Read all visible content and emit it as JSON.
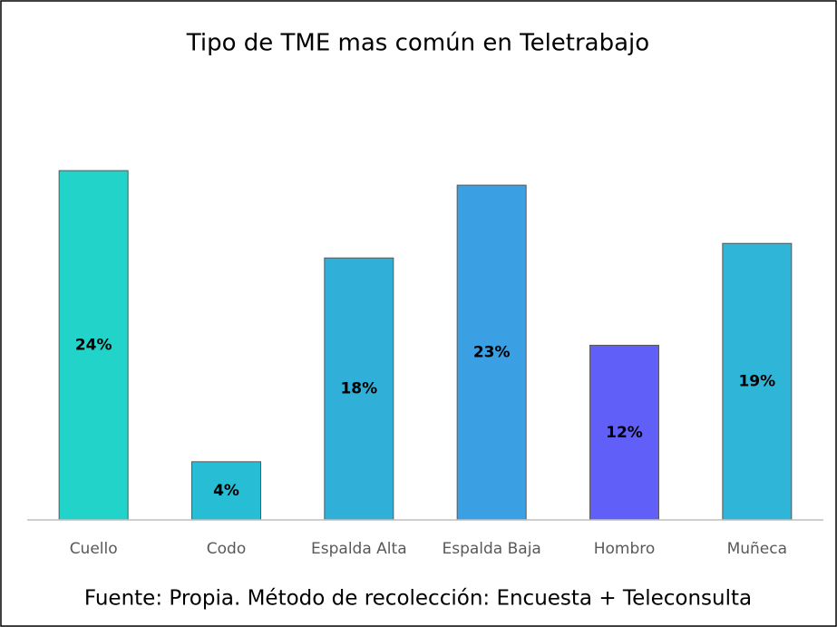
{
  "chart_data": {
    "type": "bar",
    "title": "Tipo de TME mas común en Teletrabajo",
    "categories": [
      "Cuello",
      "Codo",
      "Espalda Alta",
      "Espalda Baja",
      "Hombro",
      "Muñeca"
    ],
    "values": [
      24,
      4,
      18,
      23,
      12,
      19
    ],
    "value_labels": [
      "24%",
      "4%",
      "18%",
      "23%",
      "12%",
      "19%"
    ],
    "colors": [
      "#22d3c9",
      "#27bdd4",
      "#30b0d9",
      "#3b9fe3",
      "#6060f8",
      "#2fb5d8"
    ],
    "ylim": [
      0,
      25
    ],
    "note": "Fuente: Propia. Método de recolección: Encuesta + Teleconsulta"
  }
}
